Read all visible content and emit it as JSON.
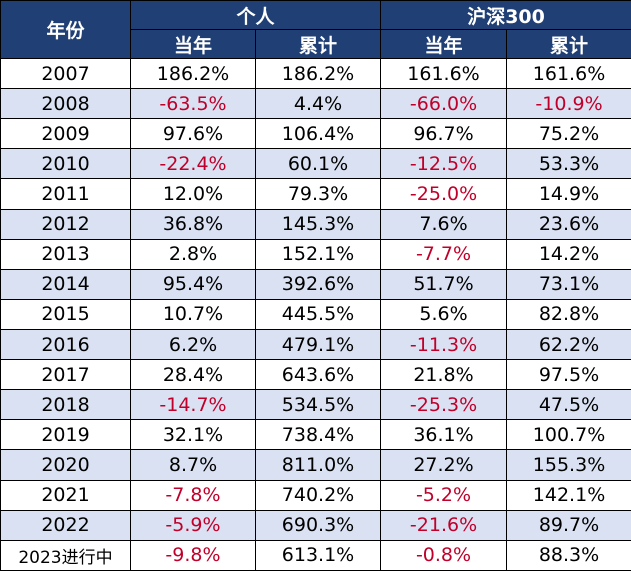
{
  "colors": {
    "header_bg": "#1f3f75",
    "header_text": "#ffffff",
    "row_alt_bg": "#d9e1f2",
    "negative_text": "#c0002a"
  },
  "headers": {
    "year": "年份",
    "group_personal": "个人",
    "group_index": "沪深300",
    "annual": "当年",
    "cumulative": "累计"
  },
  "rows": [
    {
      "year": "2007",
      "personal_annual": "186.2%",
      "personal_cum": "186.2%",
      "index_annual": "161.6%",
      "index_cum": "161.6%"
    },
    {
      "year": "2008",
      "personal_annual": "-63.5%",
      "personal_cum": "4.4%",
      "index_annual": "-66.0%",
      "index_cum": "-10.9%"
    },
    {
      "year": "2009",
      "personal_annual": "97.6%",
      "personal_cum": "106.4%",
      "index_annual": "96.7%",
      "index_cum": "75.2%"
    },
    {
      "year": "2010",
      "personal_annual": "-22.4%",
      "personal_cum": "60.1%",
      "index_annual": "-12.5%",
      "index_cum": "53.3%"
    },
    {
      "year": "2011",
      "personal_annual": "12.0%",
      "personal_cum": "79.3%",
      "index_annual": "-25.0%",
      "index_cum": "14.9%"
    },
    {
      "year": "2012",
      "personal_annual": "36.8%",
      "personal_cum": "145.3%",
      "index_annual": "7.6%",
      "index_cum": "23.6%"
    },
    {
      "year": "2013",
      "personal_annual": "2.8%",
      "personal_cum": "152.1%",
      "index_annual": "-7.7%",
      "index_cum": "14.2%"
    },
    {
      "year": "2014",
      "personal_annual": "95.4%",
      "personal_cum": "392.6%",
      "index_annual": "51.7%",
      "index_cum": "73.1%"
    },
    {
      "year": "2015",
      "personal_annual": "10.7%",
      "personal_cum": "445.5%",
      "index_annual": "5.6%",
      "index_cum": "82.8%"
    },
    {
      "year": "2016",
      "personal_annual": "6.2%",
      "personal_cum": "479.1%",
      "index_annual": "-11.3%",
      "index_cum": "62.2%"
    },
    {
      "year": "2017",
      "personal_annual": "28.4%",
      "personal_cum": "643.6%",
      "index_annual": "21.8%",
      "index_cum": "97.5%"
    },
    {
      "year": "2018",
      "personal_annual": "-14.7%",
      "personal_cum": "534.5%",
      "index_annual": "-25.3%",
      "index_cum": "47.5%"
    },
    {
      "year": "2019",
      "personal_annual": "32.1%",
      "personal_cum": "738.4%",
      "index_annual": "36.1%",
      "index_cum": "100.7%"
    },
    {
      "year": "2020",
      "personal_annual": "8.7%",
      "personal_cum": "811.0%",
      "index_annual": "27.2%",
      "index_cum": "155.3%"
    },
    {
      "year": "2021",
      "personal_annual": "-7.8%",
      "personal_cum": "740.2%",
      "index_annual": "-5.2%",
      "index_cum": "142.1%"
    },
    {
      "year": "2022",
      "personal_annual": "-5.9%",
      "personal_cum": "690.3%",
      "index_annual": "-21.6%",
      "index_cum": "89.7%"
    },
    {
      "year": "2023进行中",
      "personal_annual": "-9.8%",
      "personal_cum": "613.1%",
      "index_annual": "-0.8%",
      "index_cum": "88.3%"
    }
  ]
}
